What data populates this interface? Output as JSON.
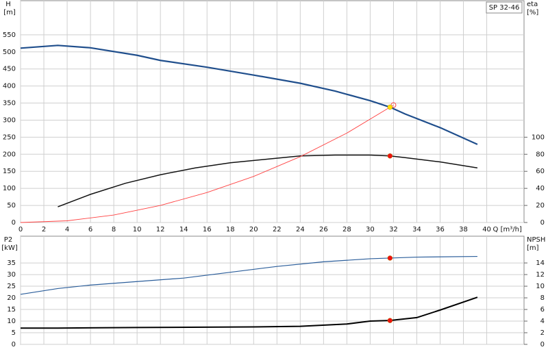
{
  "chart_data": [
    {
      "type": "line",
      "title": "SP 32-46",
      "ylabel": "H",
      "yunit": "[m]",
      "y2label": "eta",
      "y2unit": "[%]",
      "xlabel": "Q [m³/h]",
      "xlim": [
        0,
        43.2
      ],
      "xticks": [
        0,
        2,
        4,
        6,
        8,
        10,
        12,
        14,
        16,
        18,
        20,
        22,
        24,
        26,
        28,
        30,
        32,
        34,
        36,
        38,
        40
      ],
      "show_xtick_labels": true,
      "ylim": [
        0,
        650
      ],
      "yticks": [
        0,
        50,
        100,
        150,
        200,
        250,
        300,
        350,
        400,
        450,
        500,
        550
      ],
      "y2lim": [
        0,
        260
      ],
      "y2ticks": [
        0,
        20,
        40,
        60,
        80,
        100
      ],
      "grid": true,
      "series": [
        {
          "color": "#1f4e8c",
          "width": 2.2,
          "x": [
            0,
            3.2,
            6,
            10,
            12,
            16,
            20,
            24,
            27,
            30,
            31.7,
            33,
            36,
            39.2
          ],
          "values": [
            511,
            519,
            512,
            490,
            475,
            455,
            432,
            408,
            385,
            357,
            338,
            318,
            278,
            229
          ]
        },
        {
          "color": "#111111",
          "width": 1.5,
          "axis": "y2",
          "x": [
            3.2,
            6,
            9,
            12,
            15,
            18,
            21,
            24,
            27,
            30,
            31.7,
            33,
            36,
            39.2
          ],
          "values": [
            18.4,
            33,
            46,
            56,
            64,
            70,
            74,
            78,
            79,
            79,
            78,
            76,
            71,
            64
          ]
        },
        {
          "color": "#ff4040",
          "width": 0.9,
          "x": [
            0,
            4,
            8,
            12,
            16,
            20,
            24,
            28,
            32
          ],
          "values": [
            0,
            5,
            22,
            50,
            88,
            135,
            193,
            262,
            344
          ]
        }
      ],
      "points": [
        {
          "x": 32,
          "y": 344,
          "color": "#ff4040",
          "hollow": true
        },
        {
          "x": 31.7,
          "y": 338,
          "color": "#ffe000"
        },
        {
          "x": 31.7,
          "y": 78,
          "color": "#ee1111",
          "axis": "y2"
        }
      ]
    },
    {
      "type": "line",
      "ylabel": "P2",
      "yunit": "[kW]",
      "y2label": "NPSH",
      "y2unit": "[m]",
      "xlim": [
        0,
        43.2
      ],
      "xticks": [
        0,
        2,
        4,
        6,
        8,
        10,
        12,
        14,
        16,
        18,
        20,
        22,
        24,
        26,
        28,
        30,
        32,
        34,
        36,
        38,
        40
      ],
      "show_xtick_labels": false,
      "ylim": [
        0,
        46.5
      ],
      "yticks": [
        0,
        5,
        10,
        15,
        20,
        25,
        30,
        35
      ],
      "y2lim": [
        0,
        18.6
      ],
      "y2ticks": [
        0,
        2,
        4,
        6,
        8,
        10,
        12,
        14
      ],
      "grid": true,
      "series": [
        {
          "color": "#2a5d9a",
          "width": 1.2,
          "x": [
            0,
            3.2,
            6,
            10,
            14,
            18,
            22,
            26,
            30,
            31.7,
            34,
            39.2
          ],
          "values": [
            21.5,
            24,
            25.5,
            27,
            28.5,
            31,
            33.5,
            35.5,
            36.8,
            37.1,
            37.5,
            37.8
          ]
        },
        {
          "color": "#000000",
          "width": 2,
          "axis": "y2",
          "x": [
            0,
            3.2,
            10,
            20,
            24,
            28,
            30,
            31.7,
            34,
            36,
            39.2
          ],
          "values": [
            2.8,
            2.8,
            2.9,
            3,
            3.1,
            3.5,
            4,
            4.1,
            4.6,
            5.9,
            8.1
          ]
        }
      ],
      "points": [
        {
          "x": 31.7,
          "y": 37.1,
          "color": "#ee1111"
        },
        {
          "x": 31.7,
          "y": 4.1,
          "color": "#ee1111",
          "axis": "y2"
        }
      ]
    }
  ]
}
